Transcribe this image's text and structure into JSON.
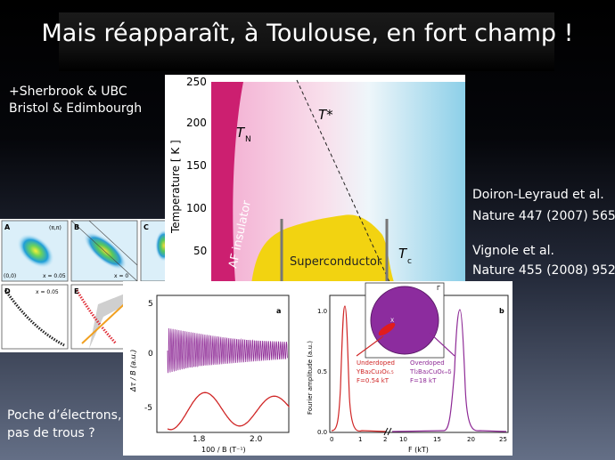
{
  "slide": {
    "title": "Mais réapparaît, à Toulouse, en fort champ !",
    "groups": [
      "+Sherbrook & UBC",
      "Bristol & Edimbourgh"
    ],
    "refs": [
      "Doiron-Leyraud et al.",
      "Nature 447 (2007) 565.",
      "Vignole et al.",
      "Nature 455 (2008) 952."
    ],
    "question": [
      "Poche d’électrons,",
      "pas de trous ?"
    ]
  },
  "arpes": {
    "panels": [
      "A",
      "B",
      "C",
      "D",
      "E"
    ],
    "corner_top": "(π,π)",
    "corner_bottom": "(0,0)",
    "doping_a": "x = 0.05",
    "doping_b": "x = 0",
    "doping_d": "x = 0.05"
  },
  "phase_diagram": {
    "ylabel": "Temperature [ K ]",
    "yticks": [
      "250",
      "200",
      "150",
      "100",
      "50"
    ],
    "label_tn": "T",
    "label_tn_sub": "N",
    "label_tstar": "T*",
    "label_tc": "T",
    "label_tc_sub": "c",
    "label_af": "AF insulator",
    "label_sc": "Superconductor",
    "colors": {
      "af": "#cc1f70",
      "sc": "#f2d311",
      "pg": "#f2a8cf",
      "fl": "#8fd0ea"
    }
  },
  "panel_a": {
    "label": "a",
    "ylabel": "Δτ / B (a.u.)",
    "xlabel": "100 / B  (T⁻¹)",
    "yticks": [
      "5",
      "0",
      "-5"
    ],
    "xticks": [
      "1.8",
      "2.0"
    ],
    "purple": "#8e2a96",
    "red": "#d02626"
  },
  "panel_b": {
    "label": "b",
    "ylabel": "Fourier amplitude (a.u.)",
    "xlabel": "F (kT)",
    "yticks": [
      "1.0",
      "0.5",
      "0.0"
    ],
    "xticks": [
      "0",
      "1",
      "2",
      "10",
      "15",
      "20",
      "25"
    ],
    "underdoped": [
      "Underdoped",
      "YBa₂Cu₃O₆.₅",
      "F=0.54 kT"
    ],
    "overdoped": [
      "Overdoped",
      "Tl₂Ba₂CuO₆₊δ",
      "F=18 kT"
    ],
    "inset_gamma": "Γ",
    "inset_x": "X"
  }
}
